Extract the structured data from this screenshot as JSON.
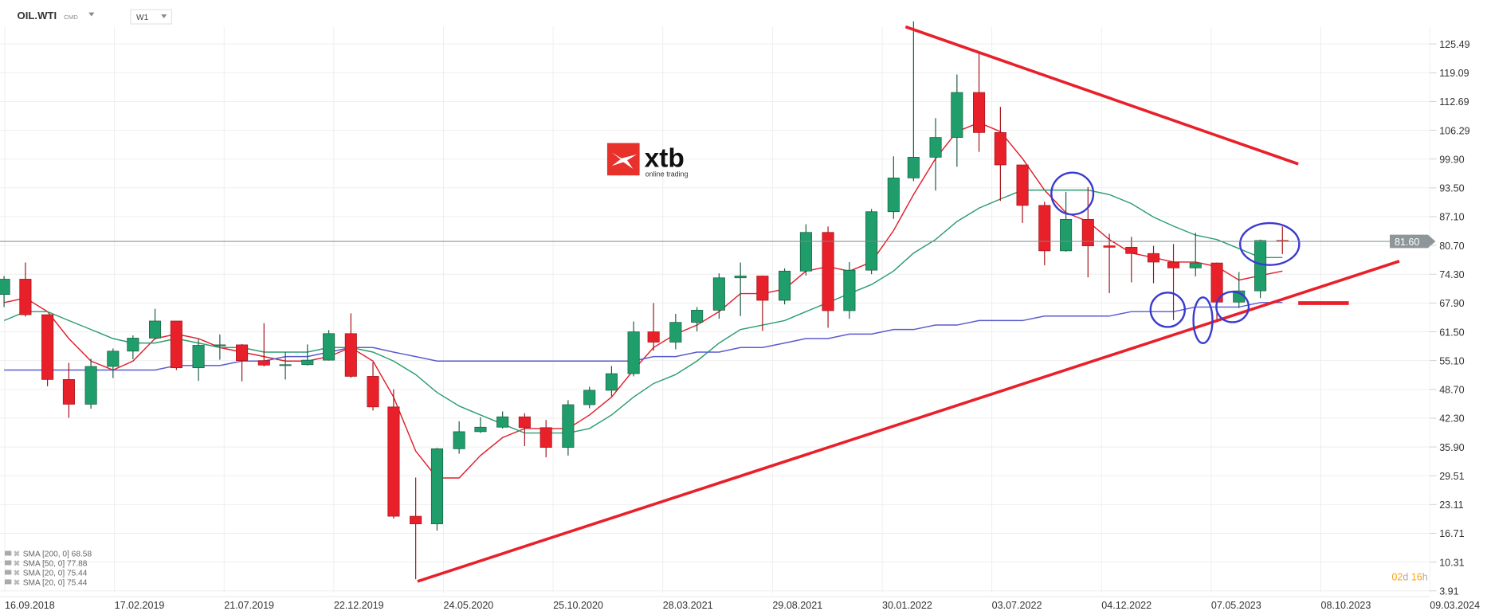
{
  "header": {
    "symbol": "OIL.WTI",
    "type": "CMD",
    "interval": "W1"
  },
  "logo": {
    "brand": "xtb",
    "tagline": "online trading",
    "color": "#e8312a"
  },
  "price_tag": {
    "value": "81.60",
    "color": "#8e9699"
  },
  "countdown": {
    "days": "02",
    "d": "d",
    "hours": "16",
    "h": "h",
    "accent": "#f7a21b"
  },
  "legend": [
    {
      "label": "SMA [200, 0] 68.58"
    },
    {
      "label": "SMA [50, 0] 77.88"
    },
    {
      "label": "SMA [20, 0] 75.44"
    },
    {
      "label": "SMA [20, 0] 75.44"
    }
  ],
  "chart_data": {
    "type": "candlestick",
    "title": "",
    "ylim": [
      3.91,
      125.49
    ],
    "y_ticks": [
      "125.49",
      "119.09",
      "112.69",
      "106.29",
      "99.90",
      "93.50",
      "87.10",
      "80.70",
      "74.30",
      "67.90",
      "61.50",
      "55.10",
      "48.70",
      "42.30",
      "35.90",
      "29.51",
      "23.11",
      "16.71",
      "10.31",
      "3.91"
    ],
    "x_ticks": [
      "16.09.2018",
      "17.02.2019",
      "21.07.2019",
      "22.12.2019",
      "24.05.2020",
      "25.10.2020",
      "28.03.2021",
      "29.08.2021",
      "30.01.2022",
      "03.07.2022",
      "04.12.2022",
      "07.05.2023",
      "08.10.2023",
      "09.03.2024"
    ],
    "grid": true,
    "up_color": "#1f9d6a",
    "down_color": "#e8202a",
    "months": [
      "2018-09",
      "2018-10",
      "2018-11",
      "2018-12",
      "2019-01",
      "2019-02",
      "2019-03",
      "2019-04",
      "2019-05",
      "2019-06",
      "2019-07",
      "2019-08",
      "2019-09",
      "2019-10",
      "2019-11",
      "2019-12",
      "2020-01",
      "2020-02",
      "2020-03",
      "2020-04",
      "2020-05",
      "2020-06",
      "2020-07",
      "2020-08",
      "2020-09",
      "2020-10",
      "2020-11",
      "2020-12",
      "2021-01",
      "2021-02",
      "2021-03",
      "2021-04",
      "2021-05",
      "2021-06",
      "2021-07",
      "2021-08",
      "2021-09",
      "2021-10",
      "2021-11",
      "2021-12",
      "2022-01",
      "2022-02",
      "2022-03",
      "2022-04",
      "2022-05",
      "2022-06",
      "2022-07",
      "2022-08",
      "2022-09",
      "2022-10",
      "2022-11",
      "2022-12",
      "2023-01",
      "2023-02",
      "2023-03",
      "2023-04",
      "2023-05",
      "2023-06",
      "2023-07",
      "2023-08"
    ],
    "ohlc": [
      [
        69.8,
        73.9,
        67.0,
        73.2
      ],
      [
        73.2,
        76.9,
        64.9,
        65.3
      ],
      [
        65.3,
        65.3,
        49.4,
        50.9
      ],
      [
        50.9,
        54.6,
        42.4,
        45.4
      ],
      [
        45.4,
        55.5,
        44.4,
        53.8
      ],
      [
        53.8,
        57.8,
        51.2,
        57.2
      ],
      [
        57.2,
        60.7,
        55.4,
        60.1
      ],
      [
        60.1,
        66.6,
        59.8,
        63.9
      ],
      [
        63.9,
        63.9,
        53.0,
        53.5
      ],
      [
        53.5,
        60.0,
        50.6,
        58.5
      ],
      [
        58.5,
        60.9,
        55.3,
        58.6
      ],
      [
        58.6,
        58.8,
        50.5,
        55.1
      ],
      [
        55.1,
        63.4,
        53.8,
        54.1
      ],
      [
        54.1,
        57.0,
        50.9,
        54.2
      ],
      [
        54.2,
        58.7,
        54.0,
        55.2
      ],
      [
        55.2,
        61.9,
        55.1,
        61.1
      ],
      [
        61.1,
        65.6,
        51.3,
        51.6
      ],
      [
        51.6,
        54.7,
        44.0,
        44.8
      ],
      [
        44.8,
        48.7,
        20.0,
        20.5
      ],
      [
        20.5,
        29.1,
        6.5,
        18.8
      ],
      [
        18.8,
        35.7,
        17.3,
        35.5
      ],
      [
        35.5,
        41.6,
        34.4,
        39.3
      ],
      [
        39.3,
        42.5,
        39.0,
        40.3
      ],
      [
        40.3,
        43.8,
        40.0,
        42.6
      ],
      [
        42.6,
        43.4,
        36.1,
        40.2
      ],
      [
        40.2,
        41.9,
        33.6,
        35.8
      ],
      [
        35.8,
        46.3,
        34.0,
        45.3
      ],
      [
        45.3,
        49.3,
        44.5,
        48.5
      ],
      [
        48.5,
        53.9,
        47.2,
        52.2
      ],
      [
        52.2,
        63.8,
        51.6,
        61.5
      ],
      [
        61.5,
        67.9,
        57.3,
        59.2
      ],
      [
        59.2,
        65.5,
        57.6,
        63.6
      ],
      [
        63.6,
        67.0,
        61.6,
        66.3
      ],
      [
        66.3,
        74.5,
        64.4,
        73.5
      ],
      [
        73.5,
        76.9,
        65.0,
        73.9
      ],
      [
        73.9,
        74.0,
        61.7,
        68.5
      ],
      [
        68.5,
        75.6,
        67.6,
        75.0
      ],
      [
        75.0,
        85.4,
        74.0,
        83.6
      ],
      [
        83.6,
        84.9,
        62.4,
        66.2
      ],
      [
        66.2,
        77.0,
        64.4,
        75.2
      ],
      [
        75.2,
        88.8,
        74.3,
        88.2
      ],
      [
        88.2,
        100.5,
        86.6,
        95.7
      ],
      [
        95.7,
        130.5,
        95.0,
        100.3
      ],
      [
        100.3,
        109.0,
        92.9,
        104.7
      ],
      [
        104.7,
        118.7,
        98.2,
        114.7
      ],
      [
        114.7,
        123.7,
        101.5,
        105.8
      ],
      [
        105.8,
        111.5,
        90.6,
        98.6
      ],
      [
        98.6,
        98.0,
        85.7,
        89.6
      ],
      [
        89.6,
        90.4,
        76.3,
        79.5
      ],
      [
        79.5,
        92.6,
        79.3,
        86.5
      ],
      [
        86.5,
        93.7,
        73.6,
        80.6
      ],
      [
        80.6,
        83.3,
        70.1,
        80.3
      ],
      [
        80.3,
        82.6,
        72.5,
        78.9
      ],
      [
        78.9,
        80.6,
        72.3,
        77.0
      ],
      [
        77.0,
        81.0,
        64.1,
        75.7
      ],
      [
        75.7,
        83.5,
        73.8,
        76.8
      ],
      [
        76.8,
        76.9,
        63.6,
        68.1
      ],
      [
        68.1,
        74.8,
        66.8,
        70.6
      ],
      [
        70.6,
        82.0,
        69.0,
        81.8
      ],
      [
        81.8,
        84.9,
        78.8,
        81.6
      ]
    ],
    "current_price": 81.6,
    "indicators": [
      {
        "name": "SMA [20, 0]",
        "last": 75.44,
        "color": "#e01e2a",
        "values": [
          68,
          69,
          66,
          60,
          55,
          53,
          55,
          60,
          61,
          60,
          58,
          57,
          56,
          55,
          55,
          56,
          58,
          55,
          47,
          35,
          29,
          29,
          34,
          38,
          40,
          40,
          40,
          43,
          47,
          53,
          58,
          61,
          63,
          66,
          70,
          70,
          71,
          75,
          76,
          75,
          77,
          84,
          92,
          100,
          106,
          108,
          106,
          100,
          93,
          88,
          86,
          82,
          79,
          78,
          77,
          77,
          76,
          73,
          74,
          75
        ]
      },
      {
        "name": "SMA [50, 0]",
        "last": 77.88,
        "color": "#2a9d6f",
        "values": [
          64,
          66,
          66,
          64,
          62,
          60,
          59,
          59,
          60,
          59,
          58,
          58,
          57,
          57,
          57,
          58,
          58,
          57,
          55,
          52,
          48,
          45,
          43,
          41,
          39,
          39,
          39,
          40,
          43,
          47,
          50,
          52,
          55,
          59,
          62,
          63,
          64,
          66,
          68,
          70,
          72,
          75,
          79,
          82,
          86,
          89,
          91,
          93,
          93,
          93,
          93,
          92,
          90,
          87,
          85,
          83,
          82,
          80,
          78,
          78
        ]
      },
      {
        "name": "SMA [200, 0]",
        "last": 68.58,
        "color": "#5a5ad0",
        "values": [
          53,
          53,
          53,
          53,
          53,
          53,
          53,
          53,
          54,
          54,
          54,
          55,
          55,
          56,
          56,
          57,
          58,
          58,
          57,
          56,
          55,
          55,
          55,
          55,
          55,
          55,
          55,
          55,
          55,
          55,
          56,
          56,
          57,
          57,
          58,
          58,
          59,
          60,
          60,
          61,
          61,
          62,
          62,
          63,
          63,
          64,
          64,
          64,
          65,
          65,
          65,
          65,
          66,
          66,
          66,
          67,
          67,
          67,
          68,
          68
        ]
      }
    ]
  }
}
